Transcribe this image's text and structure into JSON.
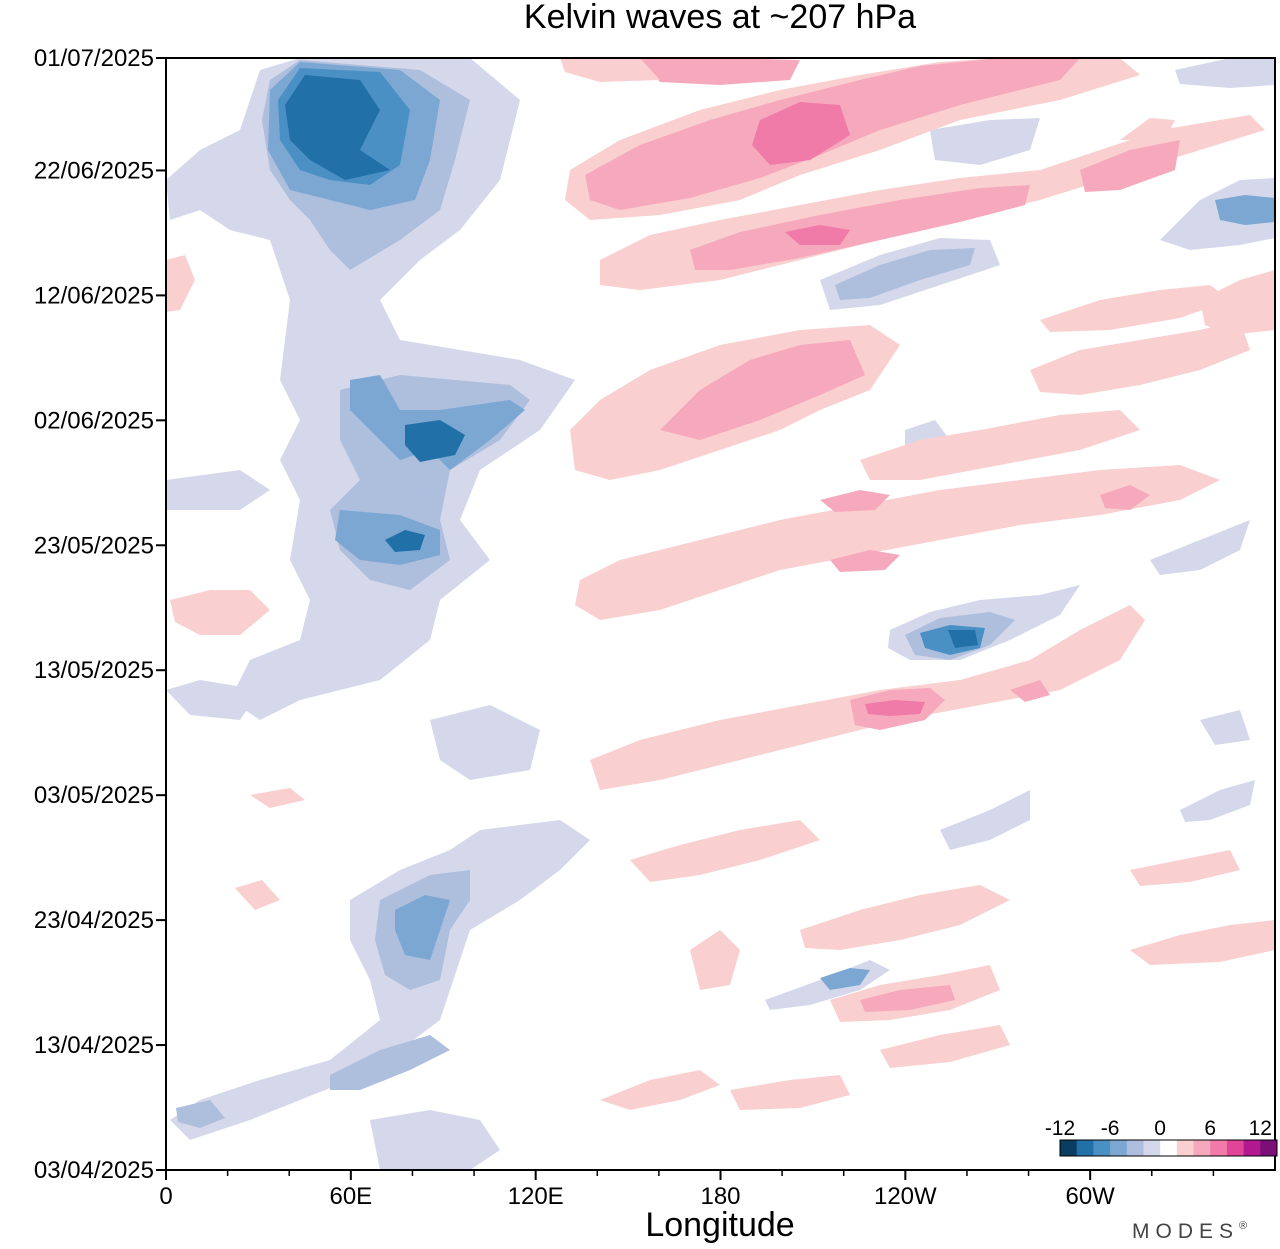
{
  "chart_data": {
    "type": "heatmap",
    "title": "Kelvin waves at ~207 hPa",
    "xlabel": "Longitude",
    "ylabel": "",
    "x_ticks": [
      "0",
      "60E",
      "120E",
      "180",
      "120W",
      "60W"
    ],
    "x_tick_values": [
      0,
      60,
      120,
      180,
      240,
      300
    ],
    "xlim": [
      0,
      360
    ],
    "y_ticks": [
      "01/07/2025",
      "22/06/2025",
      "12/06/2025",
      "02/06/2025",
      "23/05/2025",
      "13/05/2025",
      "03/05/2025",
      "23/04/2025",
      "13/04/2025",
      "03/04/2025"
    ],
    "ylim": [
      "2025-04-03",
      "2025-07-01"
    ],
    "colorbar": {
      "tick_labels": [
        "-12",
        "-6",
        "0",
        "6",
        "12"
      ],
      "levels": [
        -12,
        -10,
        -8,
        -6,
        -4,
        -2,
        0,
        2,
        4,
        6,
        8,
        10,
        12,
        14
      ],
      "colors": [
        "#0a3d62",
        "#2171a8",
        "#4a90c4",
        "#7ba7d2",
        "#aebedd",
        "#d4d8ea",
        "#ffffff",
        "#f9cfd0",
        "#f6a9bc",
        "#f07aa8",
        "#e0459a",
        "#b2188f",
        "#7a0f77"
      ]
    },
    "features": [
      {
        "value": -10,
        "lon": 65,
        "date": "2025-06-24"
      },
      {
        "value": -10,
        "lon": 88,
        "date": "2025-06-01"
      },
      {
        "value": -8,
        "lon": 80,
        "date": "2025-05-23"
      },
      {
        "value": -8,
        "lon": 80,
        "date": "2025-04-22"
      },
      {
        "value": -8,
        "lon": 270,
        "date": "2025-05-15"
      },
      {
        "value": 8,
        "lon": 200,
        "date": "2025-06-26"
      },
      {
        "value": 8,
        "lon": 215,
        "date": "2025-06-16"
      },
      {
        "value": 6,
        "lon": 205,
        "date": "2025-06-02"
      },
      {
        "value": 8,
        "lon": 230,
        "date": "2025-05-11"
      },
      {
        "value": 6,
        "lon": 240,
        "date": "2025-04-16"
      }
    ]
  },
  "brand": {
    "text": "MODES",
    "mark": "®"
  }
}
